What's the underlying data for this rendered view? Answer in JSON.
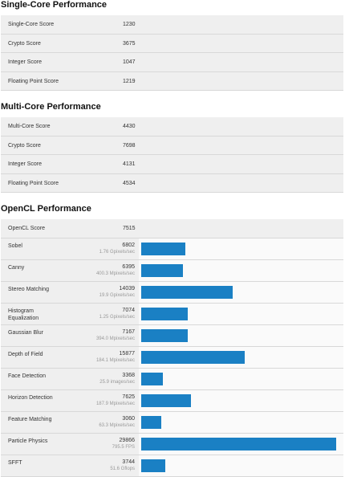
{
  "sections": [
    {
      "title": "Single-Core Performance",
      "rows": [
        {
          "label": "Single-Core Score",
          "value": 1230
        },
        {
          "label": "Crypto Score",
          "value": 3675
        },
        {
          "label": "Integer Score",
          "value": 1047
        },
        {
          "label": "Floating Point Score",
          "value": 1219
        }
      ]
    },
    {
      "title": "Multi-Core Performance",
      "rows": [
        {
          "label": "Multi-Core Score",
          "value": 4430
        },
        {
          "label": "Crypto Score",
          "value": 7698
        },
        {
          "label": "Integer Score",
          "value": 4131
        },
        {
          "label": "Floating Point Score",
          "value": 4534
        }
      ]
    }
  ],
  "opencl": {
    "title": "OpenCL Performance",
    "score_label": "OpenCL Score",
    "score": 7515,
    "tests": [
      {
        "name": "Sobel",
        "score": 6802,
        "rate": "1.76 Gpixels/sec"
      },
      {
        "name": "Canny",
        "score": 6395,
        "rate": "400.3 Mpixels/sec"
      },
      {
        "name": "Stereo Matching",
        "score": 14039,
        "rate": "19.9 Gpixels/sec"
      },
      {
        "name": "Histogram Equalization",
        "score": 7074,
        "rate": "1.25 Gpixels/sec"
      },
      {
        "name": "Gaussian Blur",
        "score": 7167,
        "rate": "394.0 Mpixels/sec"
      },
      {
        "name": "Depth of Field",
        "score": 15877,
        "rate": "184.1 Mpixels/sec"
      },
      {
        "name": "Face Detection",
        "score": 3368,
        "rate": "25.9 images/sec"
      },
      {
        "name": "Horizon Detection",
        "score": 7625,
        "rate": "187.9 Mpixels/sec"
      },
      {
        "name": "Feature Matching",
        "score": 3060,
        "rate": "63.3 Mpixels/sec"
      },
      {
        "name": "Particle Physics",
        "score": 29866,
        "rate": "795.5 FPS"
      },
      {
        "name": "SFFT",
        "score": 3744,
        "rate": "51.6 Gflops"
      }
    ]
  }
}
